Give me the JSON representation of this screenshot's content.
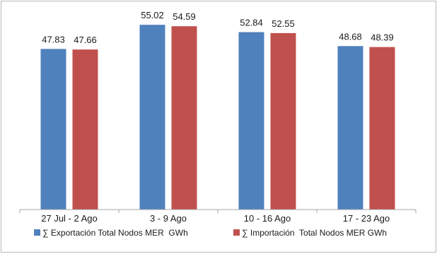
{
  "chart_data": {
    "type": "bar",
    "categories": [
      "27 Jul - 2 Ago",
      "3 - 9 Ago",
      "10 - 16 Ago",
      "17 - 23 Ago"
    ],
    "series": [
      {
        "name": "∑ Exportación Total Nodos MER  GWh",
        "values": [
          47.83,
          55.02,
          52.84,
          48.68
        ],
        "color": "#4f81bd"
      },
      {
        "name": "∑ Importación  Total Nodos MER GWh",
        "values": [
          47.66,
          54.59,
          52.55,
          48.39
        ],
        "color": "#c0504d"
      }
    ],
    "value_labels": [
      [
        "47.83",
        "55.02",
        "52.84",
        "48.68"
      ],
      [
        "47.66",
        "54.59",
        "52.55",
        "48.39"
      ]
    ],
    "legend_position": "bottom",
    "grid": false
  }
}
